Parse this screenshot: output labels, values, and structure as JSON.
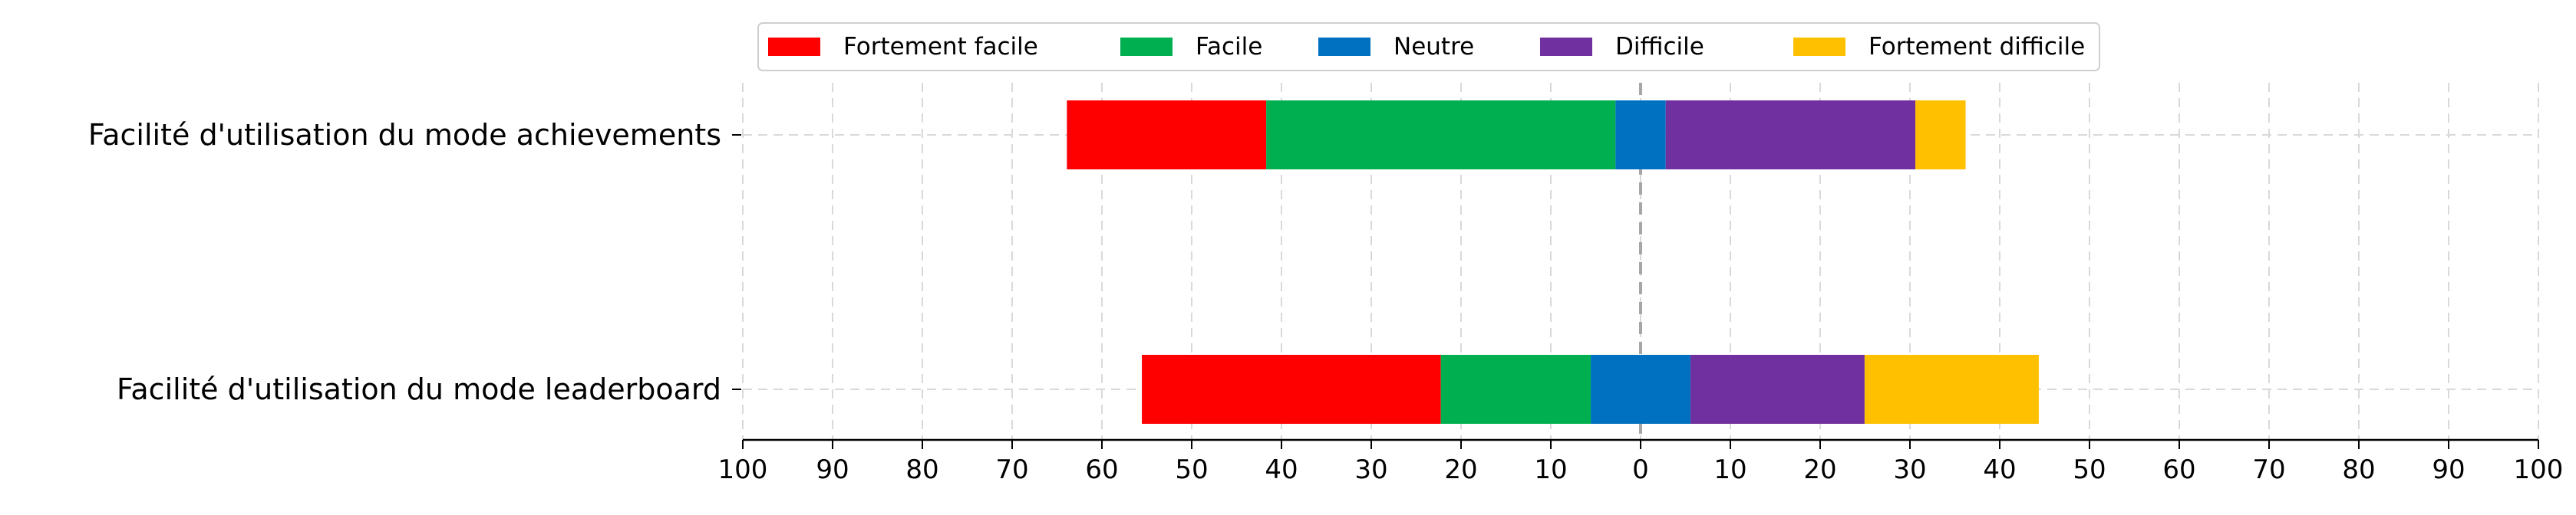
{
  "chart_data": {
    "type": "bar",
    "orientation": "horizontal",
    "stacked": "diverging",
    "categories": [
      "Facilité d'utilisation du mode achievements",
      "Facilité d'utilisation du mode leaderboard"
    ],
    "series": [
      {
        "name": "Fortement facile",
        "color": "#ff0000",
        "values": [
          22.2,
          33.3
        ]
      },
      {
        "name": "Facile",
        "color": "#00b050",
        "values": [
          38.9,
          16.7
        ]
      },
      {
        "name": "Neutre",
        "color": "#0070c0",
        "values": [
          5.6,
          11.1
        ]
      },
      {
        "name": "Difficile",
        "color": "#7030a0",
        "values": [
          27.8,
          19.4
        ]
      },
      {
        "name": "Fortement difficile",
        "color": "#ffc000",
        "values": [
          5.6,
          19.4
        ]
      }
    ],
    "xlim": [
      -100,
      100
    ],
    "xticks": [
      -100,
      -90,
      -80,
      -70,
      -60,
      -50,
      -40,
      -30,
      -20,
      -10,
      0,
      10,
      20,
      30,
      40,
      50,
      60,
      70,
      80,
      90,
      100
    ],
    "xtick_labels": [
      "100",
      "90",
      "80",
      "70",
      "60",
      "50",
      "40",
      "30",
      "20",
      "10",
      "0",
      "10",
      "20",
      "30",
      "40",
      "50",
      "60",
      "70",
      "80",
      "90",
      "100"
    ],
    "grid": true,
    "legend_position": "top",
    "title": "",
    "xlabel": "",
    "ylabel": ""
  }
}
